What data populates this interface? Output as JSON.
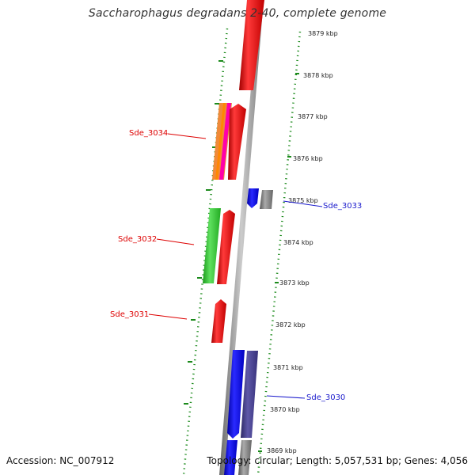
{
  "title": "Saccharophagus degradans 2-40, complete genome",
  "accession_label": "Accession: NC_007912",
  "summary_label": "Topology: circular; Length: 5,057,531 bp; Genes: 4,056",
  "colors": {
    "forward_strand": "#ee1c1c",
    "reverse_strand": "#1f1ff0",
    "backbone": "#888888",
    "tick_marks": "#1b8a1b",
    "label_forward": "#dd0000",
    "label_reverse": "#1a1acc"
  },
  "ruler": [
    "3879 kbp",
    "3878 kbp",
    "3877 kbp",
    "3876 kbp",
    "3875 kbp",
    "3874 kbp",
    "3873 kbp",
    "3872 kbp",
    "3871 kbp",
    "3870 kbp",
    "3869 kbp"
  ],
  "gene_labels": [
    {
      "name": "Sde_3034",
      "strand": "forward"
    },
    {
      "name": "Sde_3033",
      "strand": "reverse"
    },
    {
      "name": "Sde_3032",
      "strand": "forward"
    },
    {
      "name": "Sde_3031",
      "strand": "forward"
    },
    {
      "name": "Sde_3030",
      "strand": "reverse"
    }
  ]
}
